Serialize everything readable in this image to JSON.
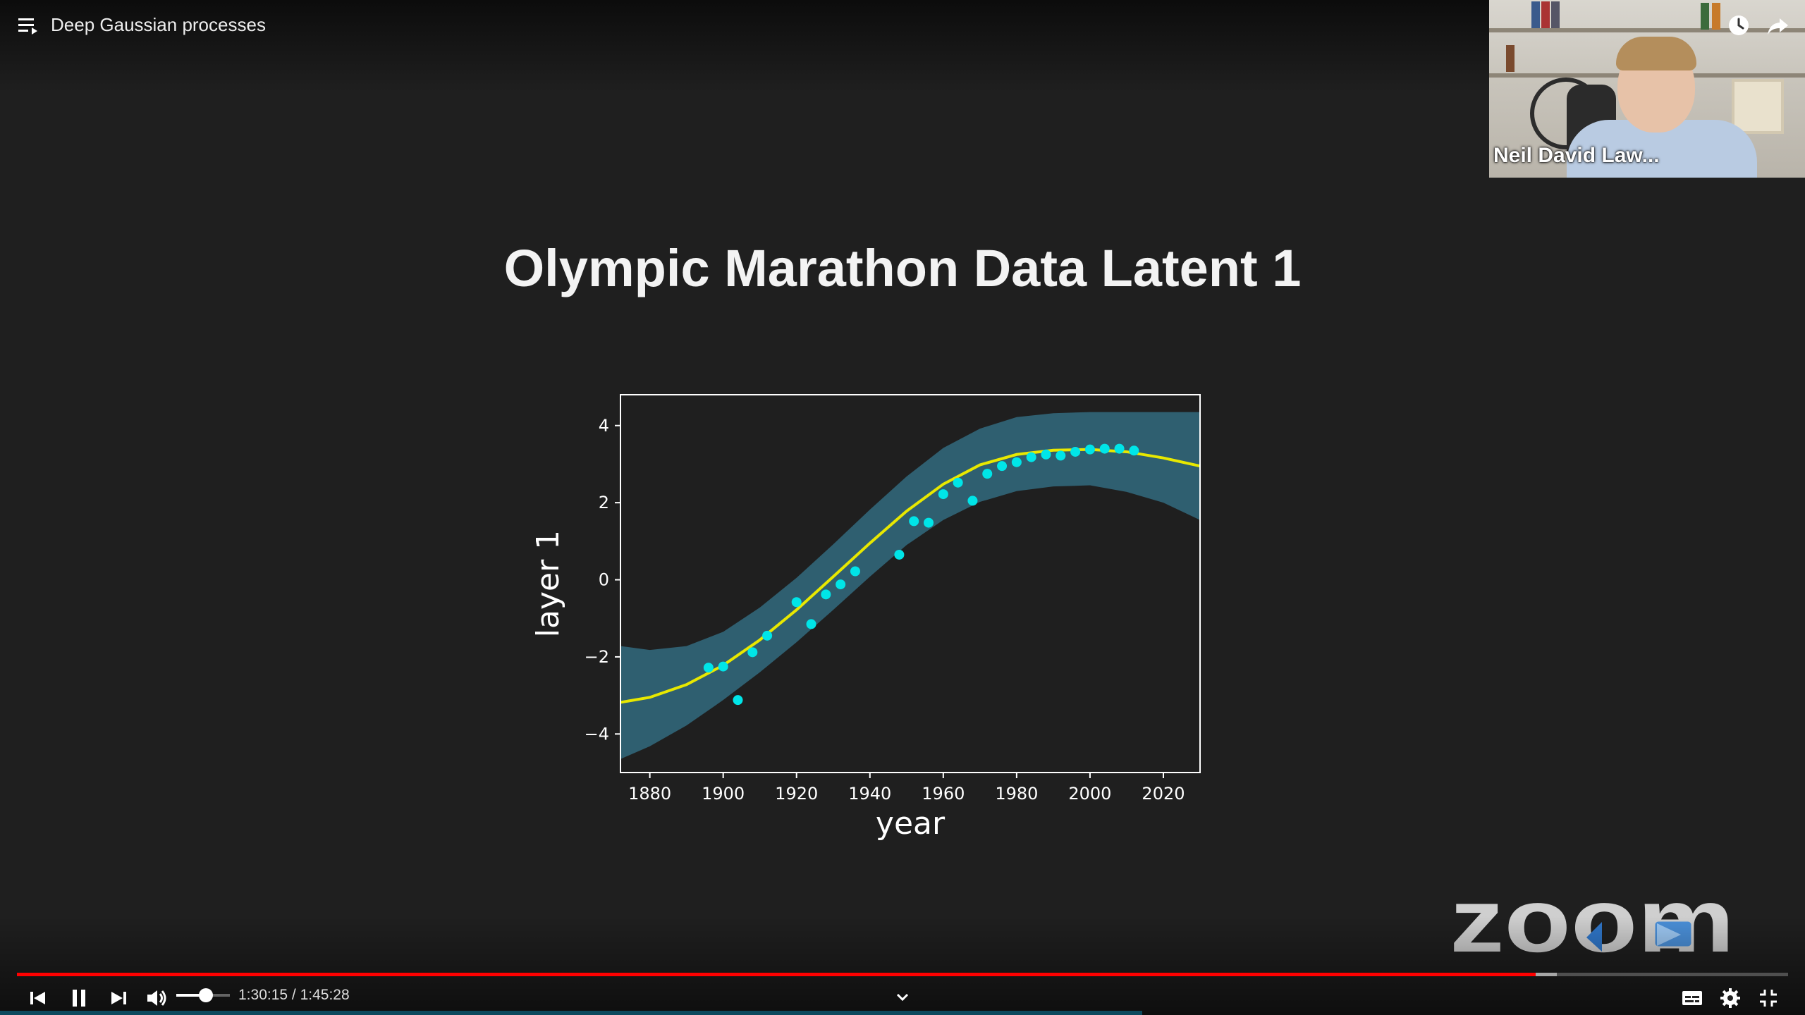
{
  "header": {
    "video_title": "Deep Gaussian processes",
    "playlist_icon": "playlist-icon",
    "watch_later_icon": "clock-icon",
    "share_icon": "share-icon"
  },
  "speaker": {
    "name": "Neil David Law..."
  },
  "slide": {
    "title": "Olympic Marathon Data Latent 1"
  },
  "chart_data": {
    "type": "scatter",
    "xlabel": "year",
    "ylabel": "layer 1",
    "xlim": [
      1872,
      2030
    ],
    "ylim": [
      -5,
      4.8
    ],
    "x_ticks": [
      1880,
      1900,
      1920,
      1940,
      1960,
      1980,
      2000,
      2020
    ],
    "y_ticks": [
      4,
      2,
      0,
      -2,
      -4
    ],
    "y_tick_labels": [
      "4",
      "2",
      "0",
      "−2",
      "−4"
    ],
    "grid": false,
    "colors": {
      "points": "#00e5e8",
      "mean": "#e8e800",
      "band": "#2f5f70",
      "axes": "#ffffff"
    },
    "points": [
      [
        1896,
        -2.28
      ],
      [
        1900,
        -2.25
      ],
      [
        1904,
        -3.12
      ],
      [
        1908,
        -1.88
      ],
      [
        1912,
        -1.45
      ],
      [
        1920,
        -0.58
      ],
      [
        1924,
        -1.15
      ],
      [
        1928,
        -0.38
      ],
      [
        1932,
        -0.12
      ],
      [
        1936,
        0.22
      ],
      [
        1948,
        0.65
      ],
      [
        1952,
        1.52
      ],
      [
        1956,
        1.48
      ],
      [
        1960,
        2.22
      ],
      [
        1964,
        2.52
      ],
      [
        1968,
        2.05
      ],
      [
        1972,
        2.75
      ],
      [
        1976,
        2.95
      ],
      [
        1980,
        3.05
      ],
      [
        1984,
        3.18
      ],
      [
        1988,
        3.25
      ],
      [
        1992,
        3.22
      ],
      [
        1996,
        3.32
      ],
      [
        2000,
        3.38
      ],
      [
        2004,
        3.4
      ],
      [
        2008,
        3.4
      ],
      [
        2012,
        3.35
      ]
    ],
    "mean_curve": [
      [
        1872,
        -3.18
      ],
      [
        1880,
        -3.05
      ],
      [
        1890,
        -2.72
      ],
      [
        1900,
        -2.22
      ],
      [
        1910,
        -1.56
      ],
      [
        1920,
        -0.78
      ],
      [
        1930,
        0.08
      ],
      [
        1940,
        0.95
      ],
      [
        1950,
        1.78
      ],
      [
        1960,
        2.48
      ],
      [
        1970,
        2.98
      ],
      [
        1980,
        3.25
      ],
      [
        1990,
        3.36
      ],
      [
        2000,
        3.38
      ],
      [
        2010,
        3.32
      ],
      [
        2020,
        3.16
      ],
      [
        2030,
        2.95
      ]
    ],
    "band_upper": [
      [
        1872,
        -1.72
      ],
      [
        1880,
        -1.82
      ],
      [
        1890,
        -1.72
      ],
      [
        1900,
        -1.35
      ],
      [
        1910,
        -0.72
      ],
      [
        1920,
        0.05
      ],
      [
        1930,
        0.92
      ],
      [
        1940,
        1.82
      ],
      [
        1950,
        2.68
      ],
      [
        1960,
        3.42
      ],
      [
        1970,
        3.92
      ],
      [
        1980,
        4.22
      ],
      [
        1990,
        4.32
      ],
      [
        2000,
        4.35
      ],
      [
        2010,
        4.35
      ],
      [
        2020,
        4.35
      ],
      [
        2030,
        4.35
      ]
    ],
    "band_lower": [
      [
        1872,
        -4.65
      ],
      [
        1880,
        -4.32
      ],
      [
        1890,
        -3.78
      ],
      [
        1900,
        -3.12
      ],
      [
        1910,
        -2.4
      ],
      [
        1920,
        -1.62
      ],
      [
        1930,
        -0.78
      ],
      [
        1940,
        0.08
      ],
      [
        1950,
        0.9
      ],
      [
        1960,
        1.55
      ],
      [
        1970,
        2.02
      ],
      [
        1980,
        2.3
      ],
      [
        1990,
        2.42
      ],
      [
        2000,
        2.45
      ],
      [
        2010,
        2.28
      ],
      [
        2020,
        2.0
      ],
      [
        2030,
        1.55
      ]
    ]
  },
  "branding": {
    "logo_text": "zoom"
  },
  "player": {
    "progress_fraction": 0.8576,
    "buffered_fraction": 0.8696,
    "volume_fraction": 0.55,
    "current_time": "1:30:15",
    "time_separator": " / ",
    "duration": "1:45:28",
    "icons": {
      "previous": "skip-previous-icon",
      "pause": "pause-icon",
      "next": "skip-next-icon",
      "volume": "volume-icon",
      "chapters": "chevron-down-icon",
      "subtitles": "subtitles-icon",
      "settings": "gear-icon",
      "fullscreen_exit": "fullscreen-exit-icon"
    }
  }
}
